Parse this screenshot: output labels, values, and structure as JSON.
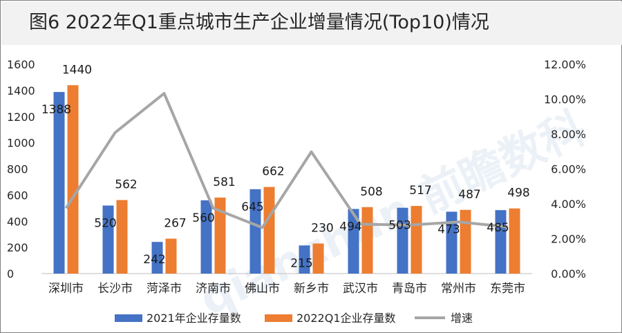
{
  "title": "图6  2022年Q1重点城市生产企业增量情况(Top10)情况",
  "watermark": "qianzhan 前瞻数科",
  "colors": {
    "series2021": "#4472c4",
    "series2022": "#ed7d31",
    "growth": "#a6a6a6"
  },
  "chart_data": {
    "type": "bar",
    "title": "图6  2022年Q1重点城市生产企业增量情况(Top10)情况",
    "categories": [
      "深圳市",
      "长沙市",
      "菏泽市",
      "济南市",
      "佛山市",
      "新乡市",
      "武汉市",
      "青岛市",
      "常州市",
      "东莞市"
    ],
    "series": [
      {
        "name": "2021年企业存量数",
        "type": "bar",
        "axis": "left",
        "values": [
          1388,
          520,
          242,
          560,
          645,
          215,
          494,
          503,
          473,
          485
        ]
      },
      {
        "name": "2022Q1企业存量数",
        "type": "bar",
        "axis": "left",
        "values": [
          1440,
          562,
          267,
          581,
          662,
          230,
          508,
          517,
          487,
          498
        ]
      },
      {
        "name": "增速",
        "type": "line",
        "axis": "right",
        "values": [
          3.75,
          8.08,
          10.33,
          3.75,
          2.64,
          6.98,
          2.83,
          2.78,
          2.96,
          2.68
        ]
      }
    ],
    "y_left": {
      "min": 0,
      "max": 1600,
      "ticks": [
        0,
        200,
        400,
        600,
        800,
        1000,
        1200,
        1400,
        1600
      ]
    },
    "y_right": {
      "min": 0,
      "max": 12,
      "ticks": [
        "0.00%",
        "2.00%",
        "4.00%",
        "6.00%",
        "8.00%",
        "10.00%",
        "12.00%"
      ]
    },
    "legend_position": "bottom",
    "grid": false
  }
}
